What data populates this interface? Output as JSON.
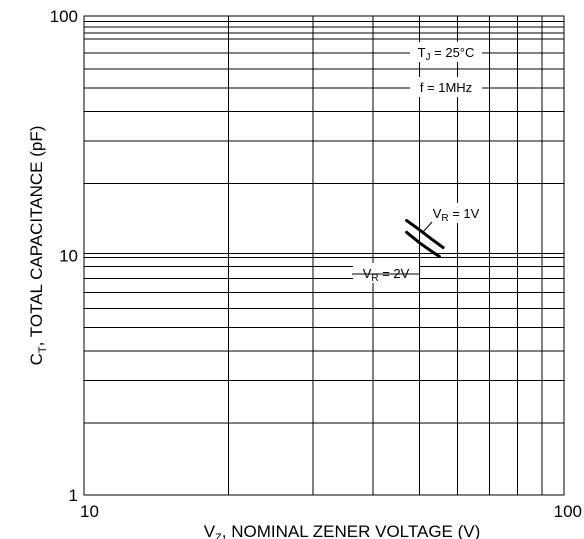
{
  "chart_data": {
    "type": "line",
    "title": "",
    "xlabel": {
      "sym": "V",
      "sub": "Z",
      "rest": ", NOMINAL ZENER VOLTAGE (V)"
    },
    "ylabel": {
      "sym": "C",
      "sub": "T",
      "rest": ", TOTAL CAPACITANCE (pF)"
    },
    "x_scale": "log",
    "y_scale": "log",
    "xlim": [
      10,
      100
    ],
    "ylim": [
      1,
      100
    ],
    "x_ticks": [
      {
        "value": 10,
        "label": "10"
      },
      {
        "value": 100,
        "label": "100"
      }
    ],
    "y_ticks": [
      {
        "value": 1,
        "label": "1"
      },
      {
        "value": 10,
        "label": "10"
      },
      {
        "value": 100,
        "label": "100"
      }
    ],
    "grid": true,
    "conditions": [
      {
        "sym": "T",
        "sub": "J",
        "rest": " = 25°C"
      },
      {
        "sym": "",
        "sub": "",
        "rest": "f = 1MHz"
      }
    ],
    "series": [
      {
        "name": {
          "sym": "V",
          "sub": "R",
          "rest": " = 1V"
        },
        "x": [
          47,
          50,
          53,
          56
        ],
        "y": [
          14.0,
          12.8,
          11.7,
          10.8
        ]
      },
      {
        "name": {
          "sym": "V",
          "sub": "R",
          "rest": " = 2V"
        },
        "x": [
          47,
          50,
          53,
          55
        ],
        "y": [
          12.5,
          11.3,
          10.4,
          9.9
        ]
      }
    ]
  }
}
